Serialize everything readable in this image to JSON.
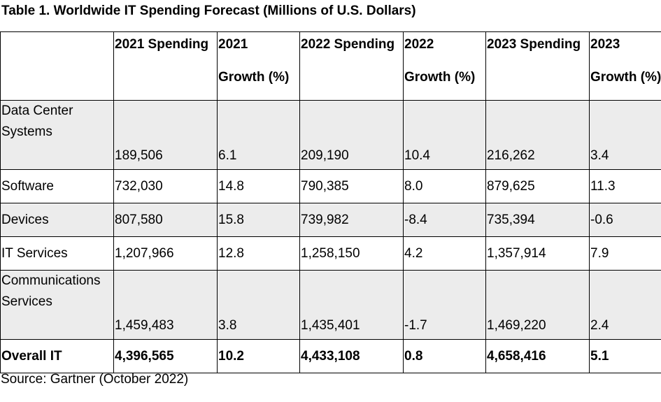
{
  "title": "Table 1. Worldwide IT Spending Forecast (Millions of U.S. Dollars)",
  "headers": [
    {
      "line1": "",
      "line2": ""
    },
    {
      "line1": "2021 Spending",
      "line2": ""
    },
    {
      "line1": "2021",
      "line2": "Growth (%)"
    },
    {
      "line1": "2022 Spending",
      "line2": ""
    },
    {
      "line1": "2022",
      "line2": "Growth (%)"
    },
    {
      "line1": "2023 Spending",
      "line2": ""
    },
    {
      "line1": "2023",
      "line2": "Growth (%)"
    }
  ],
  "rows": [
    {
      "label": "Data Center Systems",
      "s2021": "189,506",
      "g2021": "6.1",
      "s2022": "209,190",
      "g2022": "10.4",
      "s2023": "216,262",
      "g2023": "3.4"
    },
    {
      "label": "Software",
      "s2021": "732,030",
      "g2021": "14.8",
      "s2022": "790,385",
      "g2022": "8.0",
      "s2023": "879,625",
      "g2023": "11.3"
    },
    {
      "label": "Devices",
      "s2021": "807,580",
      "g2021": "15.8",
      "s2022": "739,982",
      "g2022": "-8.4",
      "s2023": "735,394",
      "g2023": "-0.6"
    },
    {
      "label": "IT Services",
      "s2021": "1,207,966",
      "g2021": "12.8",
      "s2022": "1,258,150",
      "g2022": "4.2",
      "s2023": "1,357,914",
      "g2023": "7.9"
    },
    {
      "label": "Communications Services",
      "s2021": "1,459,483",
      "g2021": "3.8",
      "s2022": "1,435,401",
      "g2022": "-1.7",
      "s2023": "1,469,220",
      "g2023": "2.4"
    },
    {
      "label": "Overall IT",
      "s2021": "4,396,565",
      "g2021": "10.2",
      "s2022": "4,433,108",
      "g2022": "0.8",
      "s2023": "4,658,416",
      "g2023": "5.1"
    }
  ],
  "source": "Source: Gartner (October 2022)",
  "colors": {
    "shade": "#ececec",
    "border": "#000000"
  }
}
